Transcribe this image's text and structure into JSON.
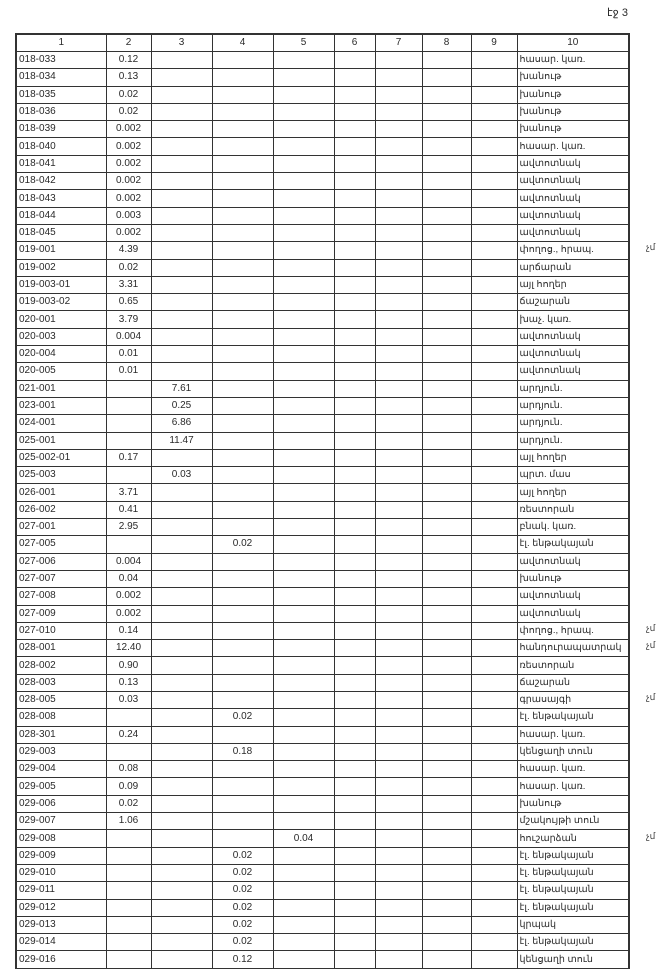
{
  "page_number": "էջ 3",
  "table": {
    "headers": [
      "1",
      "2",
      "3",
      "4",
      "5",
      "6",
      "7",
      "8",
      "9",
      "10"
    ],
    "rows": [
      {
        "c": [
          "018-033",
          "0.12",
          "",
          "",
          "",
          "",
          "",
          "",
          "",
          "հասար. կառ."
        ]
      },
      {
        "c": [
          "018-034",
          "0.13",
          "",
          "",
          "",
          "",
          "",
          "",
          "",
          "խանութ"
        ]
      },
      {
        "c": [
          "018-035",
          "0.02",
          "",
          "",
          "",
          "",
          "",
          "",
          "",
          "խանութ"
        ]
      },
      {
        "c": [
          "018-036",
          "0.02",
          "",
          "",
          "",
          "",
          "",
          "",
          "",
          "խանութ"
        ]
      },
      {
        "c": [
          "018-039",
          "0.002",
          "",
          "",
          "",
          "",
          "",
          "",
          "",
          "խանութ"
        ]
      },
      {
        "c": [
          "018-040",
          "0.002",
          "",
          "",
          "",
          "",
          "",
          "",
          "",
          "հասար. կառ."
        ]
      },
      {
        "c": [
          "018-041",
          "0.002",
          "",
          "",
          "",
          "",
          "",
          "",
          "",
          "ավտոտնակ"
        ]
      },
      {
        "c": [
          "018-042",
          "0.002",
          "",
          "",
          "",
          "",
          "",
          "",
          "",
          "ավտոտնակ"
        ]
      },
      {
        "c": [
          "018-043",
          "0.002",
          "",
          "",
          "",
          "",
          "",
          "",
          "",
          "ավտոտնակ"
        ]
      },
      {
        "c": [
          "018-044",
          "0.003",
          "",
          "",
          "",
          "",
          "",
          "",
          "",
          "ավտոտնակ"
        ]
      },
      {
        "c": [
          "018-045",
          "0.002",
          "",
          "",
          "",
          "",
          "",
          "",
          "",
          "ավտոտնակ"
        ]
      },
      {
        "c": [
          "019-001",
          "4.39",
          "",
          "",
          "",
          "",
          "",
          "",
          "",
          "փողոց., հրապ."
        ],
        "note": "չմ"
      },
      {
        "c": [
          "019-002",
          "0.02",
          "",
          "",
          "",
          "",
          "",
          "",
          "",
          "արճարան"
        ]
      },
      {
        "c": [
          "019-003-01",
          "3.31",
          "",
          "",
          "",
          "",
          "",
          "",
          "",
          "այլ հողեր"
        ]
      },
      {
        "c": [
          "019-003-02",
          "0.65",
          "",
          "",
          "",
          "",
          "",
          "",
          "",
          "ճաշարան"
        ]
      },
      {
        "c": [
          "020-001",
          "3.79",
          "",
          "",
          "",
          "",
          "",
          "",
          "",
          "խաչ. կառ."
        ]
      },
      {
        "c": [
          "020-003",
          "0.004",
          "",
          "",
          "",
          "",
          "",
          "",
          "",
          "ավտոտնակ"
        ]
      },
      {
        "c": [
          "020-004",
          "0.01",
          "",
          "",
          "",
          "",
          "",
          "",
          "",
          "ավտոտնակ"
        ]
      },
      {
        "c": [
          "020-005",
          "0.01",
          "",
          "",
          "",
          "",
          "",
          "",
          "",
          "ավտոտնակ"
        ]
      },
      {
        "c": [
          "021-001",
          "",
          "7.61",
          "",
          "",
          "",
          "",
          "",
          "",
          "արդյուն."
        ]
      },
      {
        "c": [
          "023-001",
          "",
          "0.25",
          "",
          "",
          "",
          "",
          "",
          "",
          "արդյուն."
        ]
      },
      {
        "c": [
          "024-001",
          "",
          "6.86",
          "",
          "",
          "",
          "",
          "",
          "",
          "արդյուն."
        ]
      },
      {
        "c": [
          "025-001",
          "",
          "11.47",
          "",
          "",
          "",
          "",
          "",
          "",
          "արդյուն."
        ]
      },
      {
        "c": [
          "025-002-01",
          "0.17",
          "",
          "",
          "",
          "",
          "",
          "",
          "",
          "այլ հողեր"
        ]
      },
      {
        "c": [
          "025-003",
          "",
          "0.03",
          "",
          "",
          "",
          "",
          "",
          "",
          "պրտ. մաս"
        ]
      },
      {
        "c": [
          "026-001",
          "3.71",
          "",
          "",
          "",
          "",
          "",
          "",
          "",
          "այլ հողեր"
        ]
      },
      {
        "c": [
          "026-002",
          "0.41",
          "",
          "",
          "",
          "",
          "",
          "",
          "",
          "ռեստորան"
        ]
      },
      {
        "c": [
          "027-001",
          "2.95",
          "",
          "",
          "",
          "",
          "",
          "",
          "",
          "բնակ. կառ."
        ]
      },
      {
        "c": [
          "027-005",
          "",
          "",
          "0.02",
          "",
          "",
          "",
          "",
          "",
          "էլ. ենթակայան"
        ]
      },
      {
        "c": [
          "027-006",
          "0.004",
          "",
          "",
          "",
          "",
          "",
          "",
          "",
          "ավտոտնակ"
        ]
      },
      {
        "c": [
          "027-007",
          "0.04",
          "",
          "",
          "",
          "",
          "",
          "",
          "",
          "խանութ"
        ]
      },
      {
        "c": [
          "027-008",
          "0.002",
          "",
          "",
          "",
          "",
          "",
          "",
          "",
          "ավտոտնակ"
        ]
      },
      {
        "c": [
          "027-009",
          "0.002",
          "",
          "",
          "",
          "",
          "",
          "",
          "",
          "ավտոտնակ"
        ]
      },
      {
        "c": [
          "027-010",
          "0.14",
          "",
          "",
          "",
          "",
          "",
          "",
          "",
          "փողոց., հրապ."
        ],
        "note": "չմ"
      },
      {
        "c": [
          "028-001",
          "12.40",
          "",
          "",
          "",
          "",
          "",
          "",
          "",
          "հանդուրապատրակ"
        ],
        "note": "չմ"
      },
      {
        "c": [
          "028-002",
          "0.90",
          "",
          "",
          "",
          "",
          "",
          "",
          "",
          "ռեստորան"
        ]
      },
      {
        "c": [
          "028-003",
          "0.13",
          "",
          "",
          "",
          "",
          "",
          "",
          "",
          "ճաշարան"
        ]
      },
      {
        "c": [
          "028-005",
          "0.03",
          "",
          "",
          "",
          "",
          "",
          "",
          "",
          "գրասայգի"
        ],
        "note": "չմ"
      },
      {
        "c": [
          "028-008",
          "",
          "",
          "0.02",
          "",
          "",
          "",
          "",
          "",
          "էլ. ենթակայան"
        ]
      },
      {
        "c": [
          "028-301",
          "0.24",
          "",
          "",
          "",
          "",
          "",
          "",
          "",
          "հասար. կառ."
        ]
      },
      {
        "c": [
          "029-003",
          "",
          "",
          "0.18",
          "",
          "",
          "",
          "",
          "",
          "կենցաղի տուն"
        ]
      },
      {
        "c": [
          "029-004",
          "0.08",
          "",
          "",
          "",
          "",
          "",
          "",
          "",
          "հասար. կառ."
        ]
      },
      {
        "c": [
          "029-005",
          "0.09",
          "",
          "",
          "",
          "",
          "",
          "",
          "",
          "հասար. կառ."
        ]
      },
      {
        "c": [
          "029-006",
          "0.02",
          "",
          "",
          "",
          "",
          "",
          "",
          "",
          "խանութ"
        ]
      },
      {
        "c": [
          "029-007",
          "1.06",
          "",
          "",
          "",
          "",
          "",
          "",
          "",
          "մշակույթի տուն"
        ]
      },
      {
        "c": [
          "029-008",
          "",
          "",
          "",
          "0.04",
          "",
          "",
          "",
          "",
          "հուշարձան"
        ],
        "note": "չմ"
      },
      {
        "c": [
          "029-009",
          "",
          "",
          "0.02",
          "",
          "",
          "",
          "",
          "",
          "էլ. ենթակայան"
        ]
      },
      {
        "c": [
          "029-010",
          "",
          "",
          "0.02",
          "",
          "",
          "",
          "",
          "",
          "էլ. ենթակայան"
        ]
      },
      {
        "c": [
          "029-011",
          "",
          "",
          "0.02",
          "",
          "",
          "",
          "",
          "",
          "էլ. ենթակայան"
        ]
      },
      {
        "c": [
          "029-012",
          "",
          "",
          "0.02",
          "",
          "",
          "",
          "",
          "",
          "էլ. ենթակայան"
        ]
      },
      {
        "c": [
          "029-013",
          "",
          "",
          "0.02",
          "",
          "",
          "",
          "",
          "",
          "կրպակ"
        ]
      },
      {
        "c": [
          "029-014",
          "",
          "",
          "0.02",
          "",
          "",
          "",
          "",
          "",
          "էլ. ենթակայան"
        ]
      },
      {
        "c": [
          "029-016",
          "",
          "",
          "0.12",
          "",
          "",
          "",
          "",
          "",
          "կենցաղի տուն"
        ]
      }
    ]
  }
}
